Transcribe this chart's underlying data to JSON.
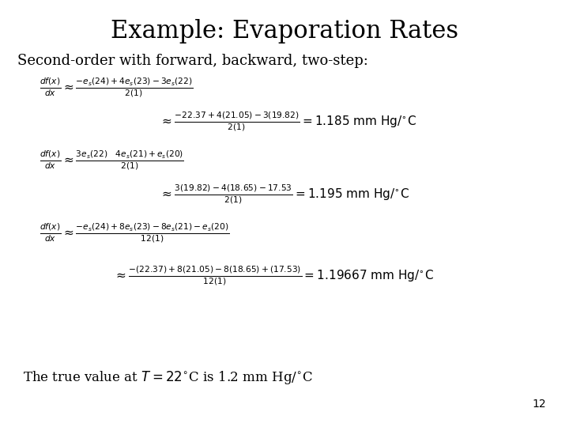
{
  "title": "Example: Evaporation Rates",
  "subtitle": "Second-order with forward, backward, two-step:",
  "background_color": "#ffffff",
  "text_color": "#000000",
  "title_fontsize": 22,
  "subtitle_fontsize": 13,
  "eq_fontsize": 11,
  "footer_fontsize": 12,
  "page_number": "12",
  "footer": "The true value at $T = 22^{\\circ}$C is 1.2 mm Hg/$^{\\circ}$C"
}
